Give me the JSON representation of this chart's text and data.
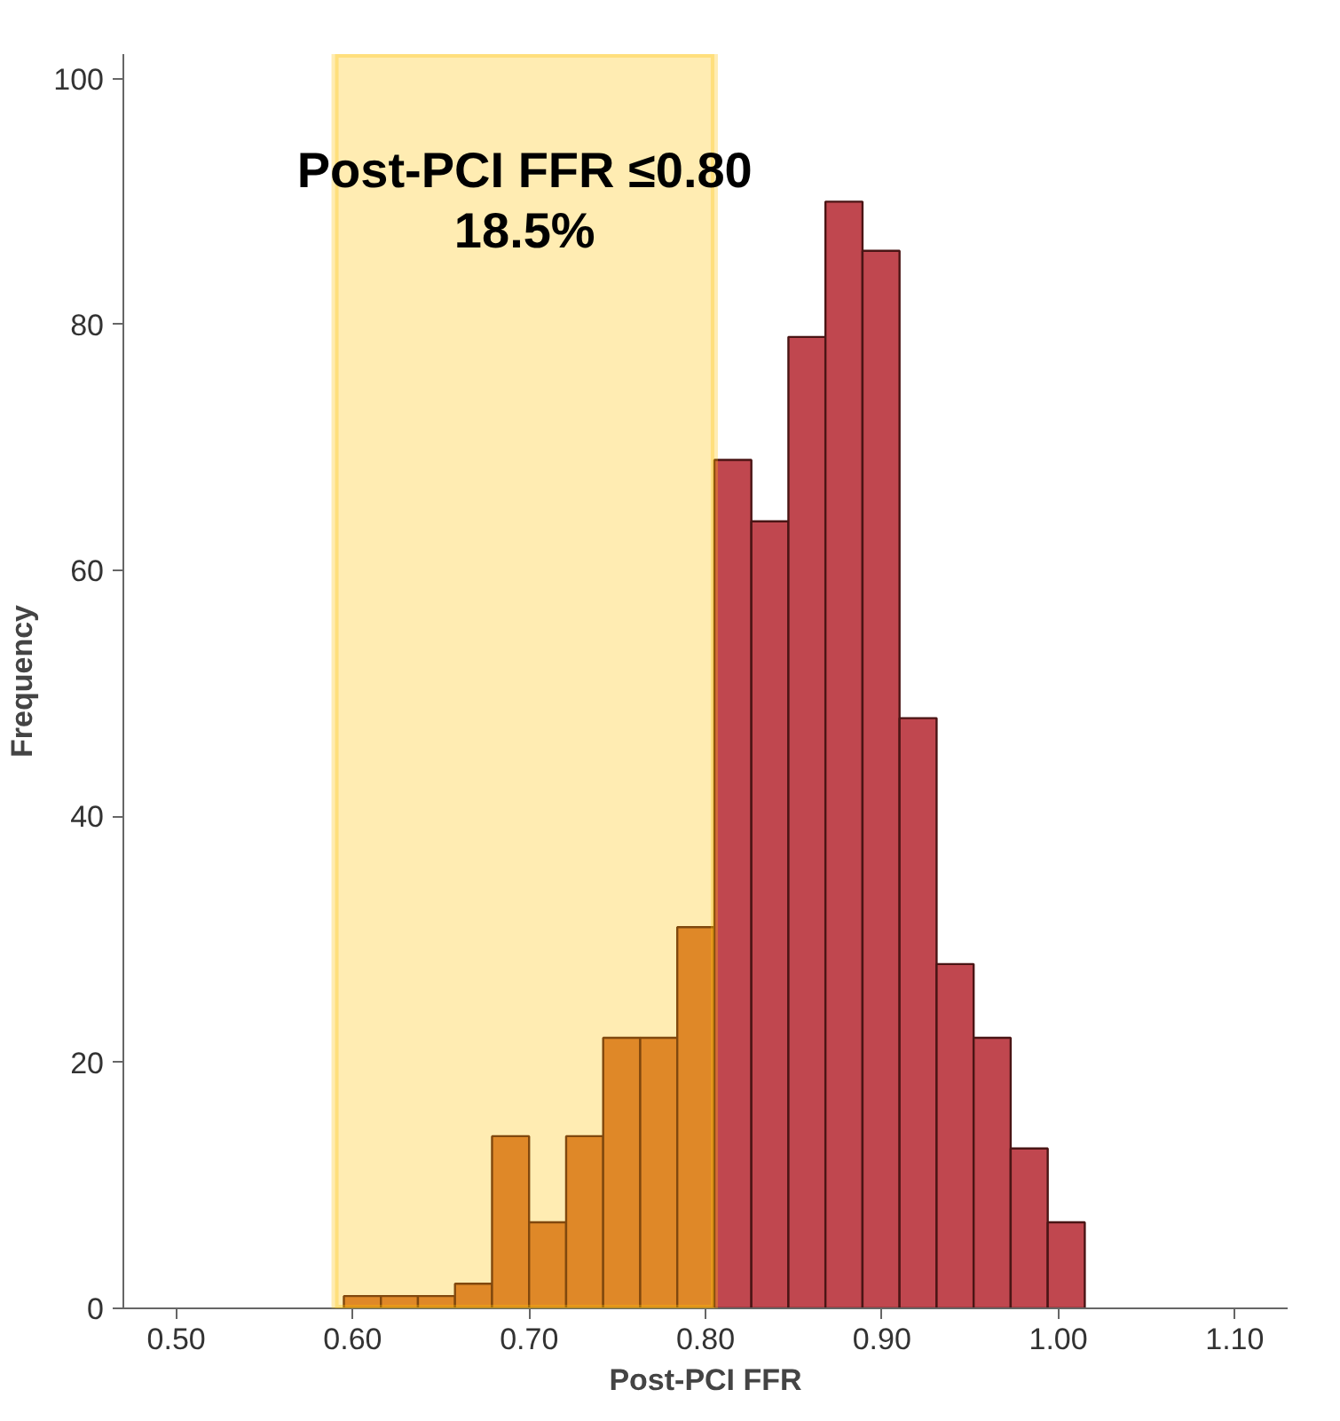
{
  "chart_data": {
    "type": "histogram",
    "xlabel": "Post-PCI FFR",
    "ylabel": "Frequency",
    "bins": [
      0.595,
      0.616,
      0.637,
      0.658,
      0.679,
      0.7,
      0.721,
      0.742,
      0.763,
      0.784,
      0.805,
      0.826,
      0.847,
      0.868,
      0.889,
      0.91,
      0.931,
      0.952,
      0.973,
      0.994,
      1.015
    ],
    "values": [
      1,
      1,
      1,
      2,
      14,
      7,
      14,
      22,
      22,
      31,
      69,
      64,
      79,
      90,
      86,
      48,
      28,
      22,
      13,
      7
    ],
    "colors": [
      "#d2703a",
      "#d2703a",
      "#d2703a",
      "#d2703a",
      "#d2703a",
      "#d2703a",
      "#d2703a",
      "#d2703a",
      "#d2703a",
      "#d2703a",
      "#c0474f",
      "#c0474f",
      "#c0474f",
      "#c0474f",
      "#c0474f",
      "#c0474f",
      "#c0474f",
      "#c0474f",
      "#c0474f",
      "#c0474f"
    ],
    "xlim": [
      0.47,
      1.13
    ],
    "ylim": [
      0,
      102
    ],
    "xticks": [
      {
        "value": 0.5,
        "label": "0.50"
      },
      {
        "value": 0.6,
        "label": "0.60"
      },
      {
        "value": 0.7,
        "label": "0.70"
      },
      {
        "value": 0.8,
        "label": "0.80"
      },
      {
        "value": 0.9,
        "label": "0.90"
      },
      {
        "value": 1.0,
        "label": "1.00"
      },
      {
        "value": 1.1,
        "label": "1.10"
      }
    ],
    "yticks": [
      0,
      20,
      40,
      60,
      80,
      100
    ],
    "bands": [
      {
        "axis": "x",
        "from": 0.59,
        "to": 0.805,
        "label": "Post-PCI FFR ≤0.80\n18.5%",
        "color": "#ffc000"
      }
    ]
  }
}
